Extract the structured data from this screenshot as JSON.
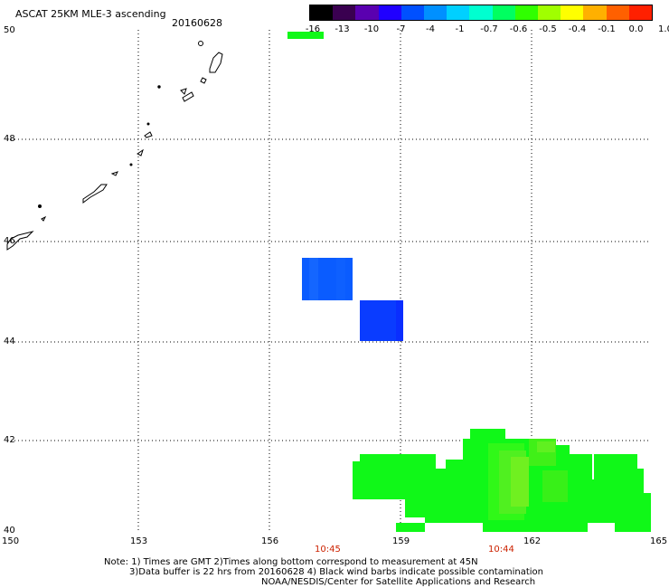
{
  "header": {
    "title": "ASCAT 25KM MLE-3 ascending",
    "date": "20160628"
  },
  "colorbar": {
    "labels": [
      "-16",
      "-13",
      "-10",
      "-7",
      "-4",
      "-1",
      "-0.7",
      "-0.6",
      "-0.5",
      "-0.4",
      "-0.1",
      "0.0",
      "1.0"
    ],
    "colors": [
      "#000000",
      "#3a0050",
      "#5a00b0",
      "#2000ff",
      "#0050ff",
      "#0090ff",
      "#00d0ff",
      "#00ffd0",
      "#00ff60",
      "#30ff00",
      "#a0ff00",
      "#ffff00",
      "#ffb000",
      "#ff6000",
      "#ff2000"
    ]
  },
  "axes": {
    "y_labels": [
      "50",
      "48",
      "46",
      "44",
      "42",
      "40"
    ],
    "x_labels": [
      "150",
      "153",
      "156",
      "159",
      "162",
      "165"
    ]
  },
  "time_labels": [
    "10:45",
    "10:44"
  ],
  "time_color": "#cc2200",
  "data_colors": {
    "blue_a": "#0a5cff",
    "blue_b": "#0a3cff",
    "green": "#10f818",
    "light_green": "#80f020"
  },
  "notes": {
    "line1": "Note: 1) Times are GMT 2)Times along bottom correspond to measurement at 45N",
    "line2": "3)Data buffer is 22 hrs from 20160628 4) Black wind barbs indicate possible contamination",
    "line3": "NOAA/NESDIS/Center for Satellite Applications and Research"
  }
}
